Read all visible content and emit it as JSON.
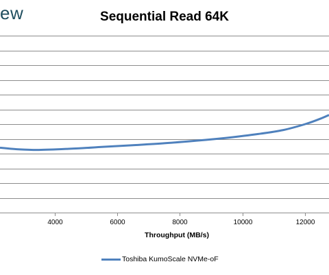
{
  "header": {
    "logo_fragment": "ew"
  },
  "chart_data": {
    "type": "line",
    "title": "Sequential Read 64K",
    "xlabel": "Throughput (MB/s)",
    "ylabel": "",
    "xlim": [
      2260,
      12760
    ],
    "ylim": [
      0,
      12
    ],
    "grid": true,
    "legend_placement": "bottom",
    "x_ticks": [
      4000,
      6000,
      8000,
      10000,
      12000
    ],
    "y_tick_count": 12,
    "series": [
      {
        "name": "Toshiba KumoScale NVMe-oF",
        "color": "#4f81bd",
        "x": [
          2260,
          2800,
          3500,
          4500,
          5500,
          6500,
          7500,
          8500,
          9500,
          10500,
          11300,
          12000,
          12500,
          12760
        ],
        "y": [
          4.4,
          4.3,
          4.25,
          4.33,
          4.45,
          4.57,
          4.7,
          4.87,
          5.07,
          5.33,
          5.6,
          6.0,
          6.38,
          6.62
        ]
      }
    ]
  }
}
